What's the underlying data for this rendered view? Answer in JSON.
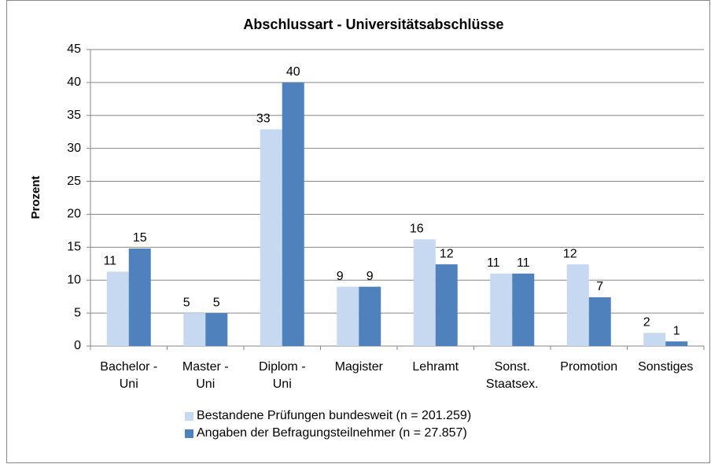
{
  "chart_data": {
    "type": "bar",
    "title": "Abschlussart - Universitätsabschlüsse",
    "y_label": "Prozent",
    "categories": [
      "Bachelor -\nUni",
      "Master -\nUni",
      "Diplom -\nUni",
      "Magister",
      "Lehramt",
      "Sonst.\nStaatsex.",
      "Promotion",
      "Sonstiges"
    ],
    "series": [
      {
        "name": "Bestandene Prüfungen bundesweit (n = 201.259)",
        "color": "#c6d9f1",
        "values": [
          11.3,
          5.0,
          32.9,
          9.0,
          16.2,
          11.0,
          12.4,
          2.0
        ],
        "value_labels": [
          "11",
          "5",
          "33",
          "9",
          "16",
          "11",
          "12",
          "2"
        ]
      },
      {
        "name": "Angaben der Befragungsteilnehmer (n = 27.857)",
        "color": "#4f81bd",
        "values": [
          14.8,
          5.0,
          40.0,
          9.0,
          12.4,
          11.0,
          7.4,
          0.7
        ],
        "value_labels": [
          "15",
          "5",
          "40",
          "9",
          "12",
          "11",
          "7",
          "1"
        ]
      }
    ],
    "ylim": [
      0,
      45
    ],
    "yticks": [
      0,
      5,
      10,
      15,
      20,
      25,
      30,
      35,
      40,
      45
    ],
    "grid": true,
    "legend": "bottom"
  }
}
